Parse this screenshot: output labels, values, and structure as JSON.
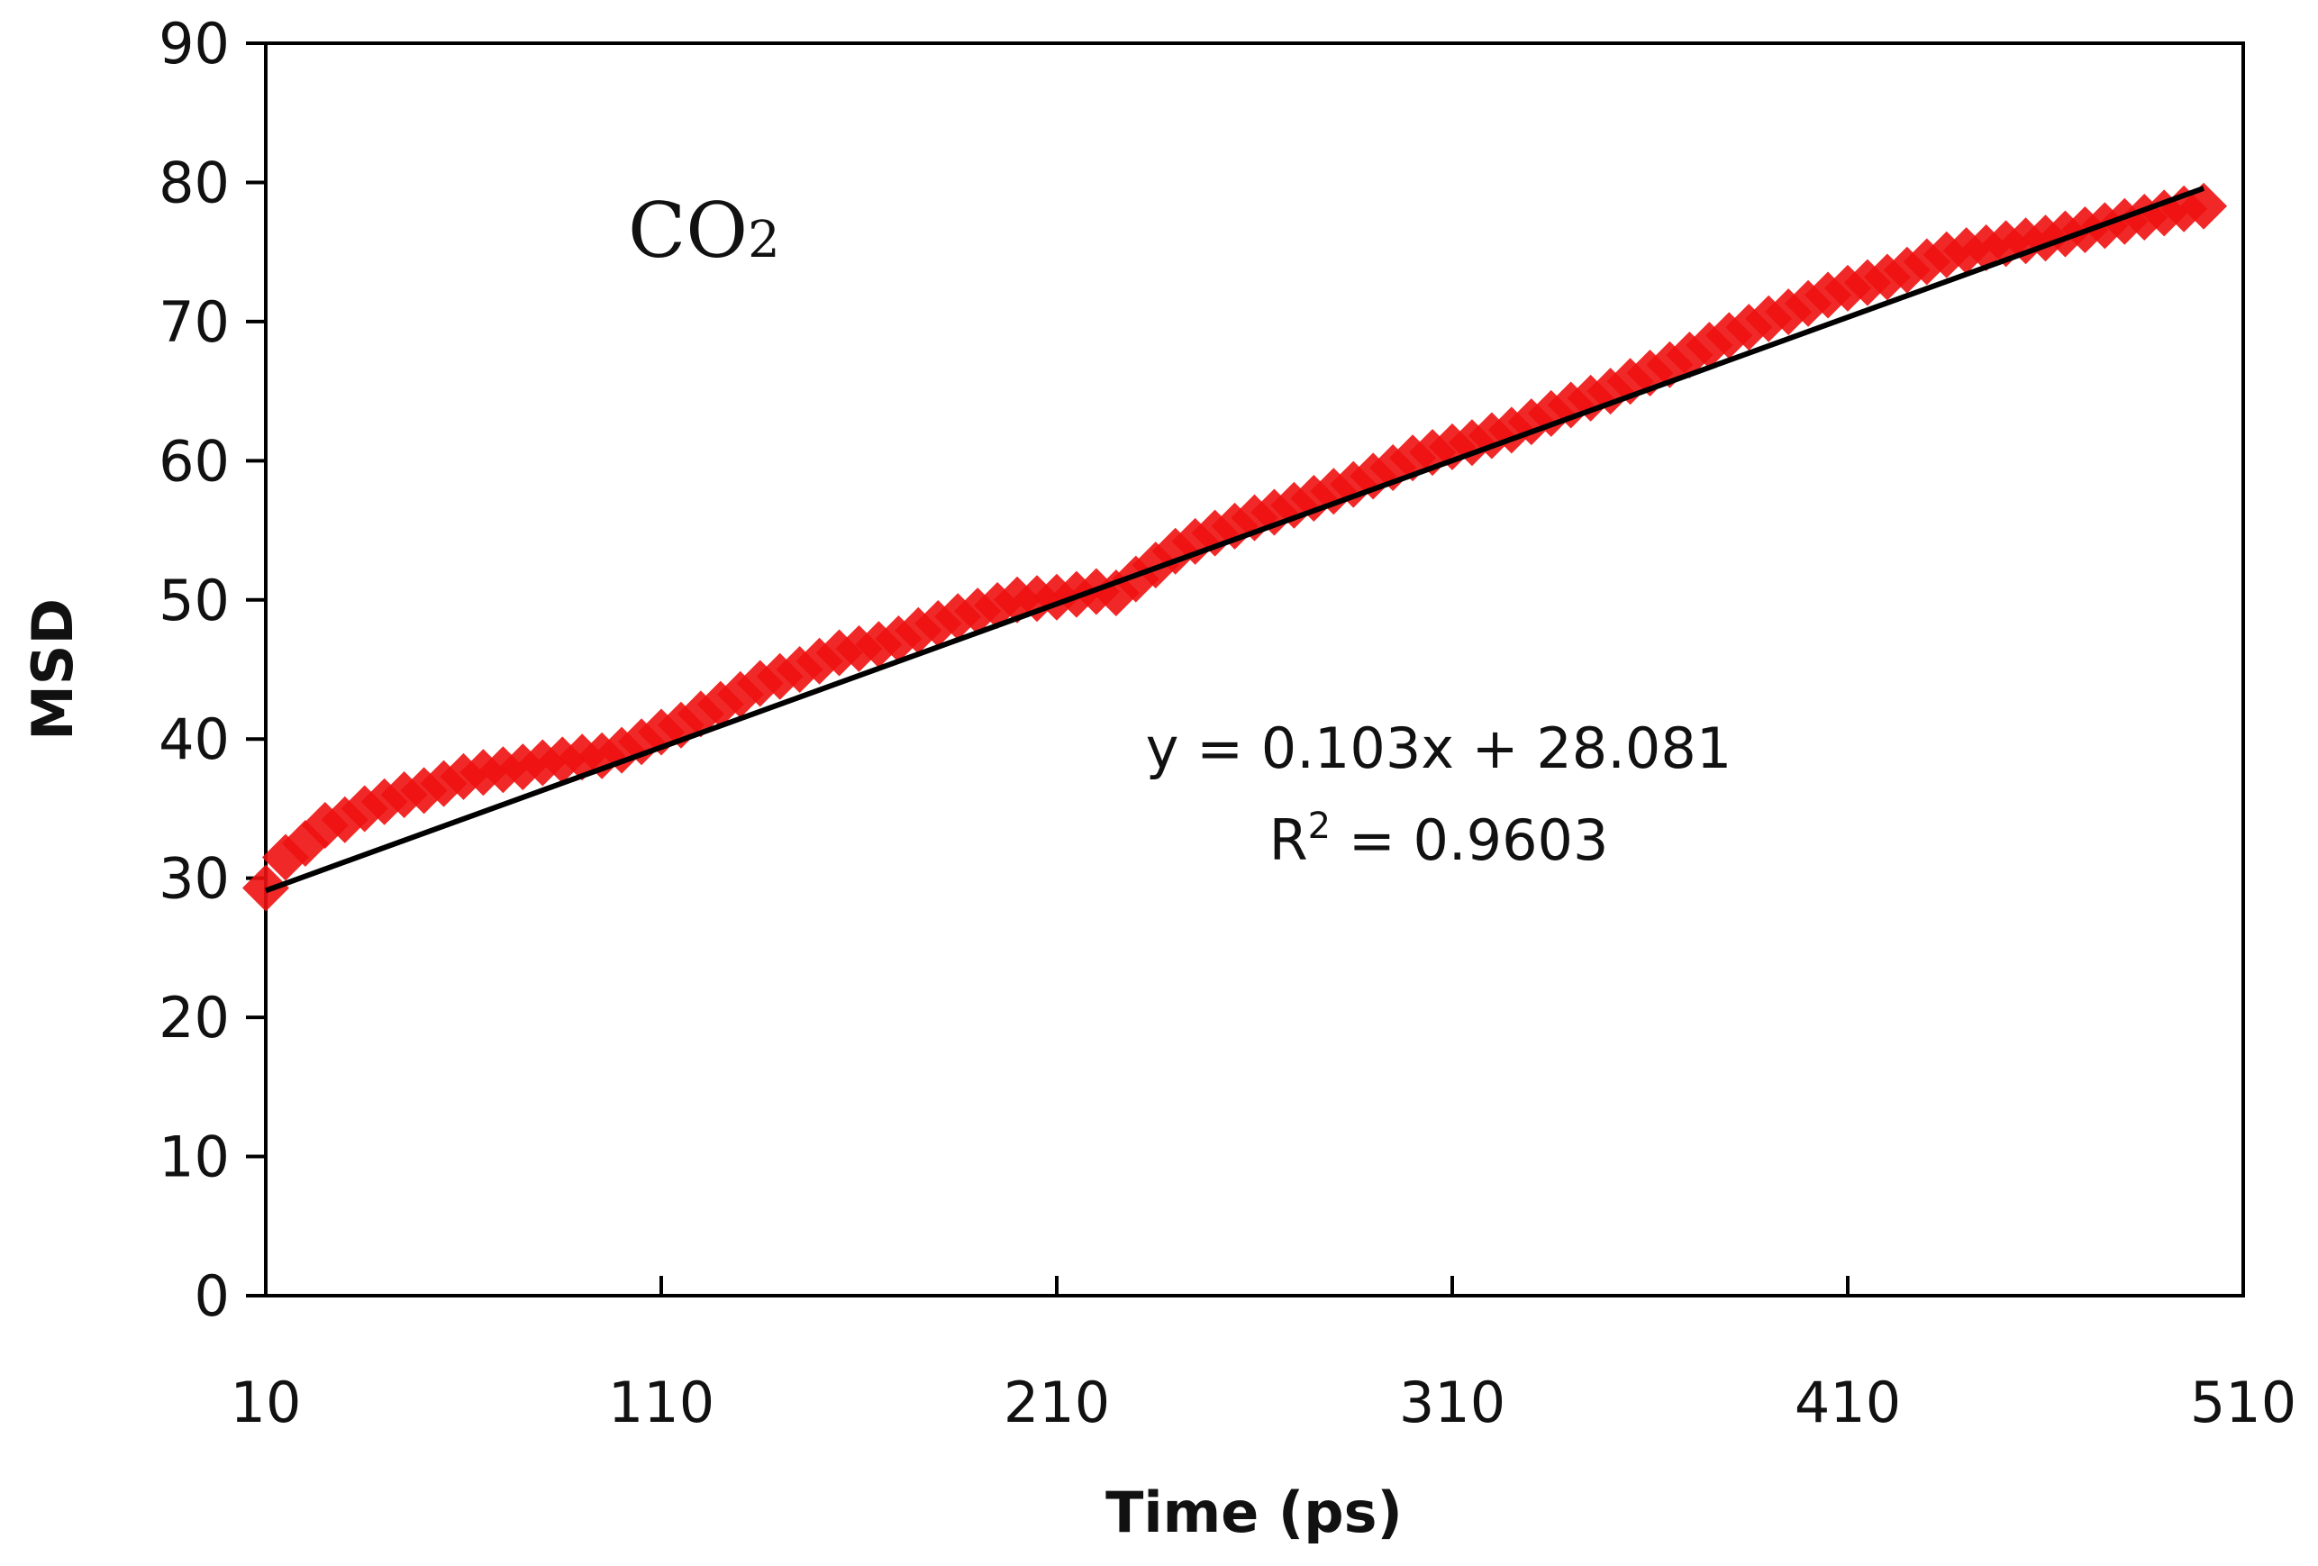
{
  "chart_data": {
    "type": "scatter",
    "title": "",
    "xlabel": "Time (ps)",
    "ylabel": "MSD",
    "xlim": [
      10,
      510
    ],
    "ylim": [
      0,
      90
    ],
    "x_ticks": [
      10,
      110,
      210,
      310,
      410,
      510
    ],
    "y_ticks": [
      0,
      10,
      20,
      30,
      40,
      50,
      60,
      70,
      80,
      90
    ],
    "series_label": {
      "base": "CO",
      "subscript": "2"
    },
    "marker_color": "#ee1111",
    "fit_line_color": "#000000",
    "grid": false,
    "series": [
      {
        "name": "CO2",
        "x": [
          10,
          15,
          20,
          25,
          30,
          35,
          40,
          45,
          50,
          55,
          60,
          65,
          70,
          75,
          80,
          85,
          90,
          95,
          100,
          105,
          110,
          115,
          120,
          125,
          130,
          135,
          140,
          145,
          150,
          155,
          160,
          165,
          170,
          175,
          180,
          185,
          190,
          195,
          200,
          205,
          210,
          215,
          220,
          225,
          230,
          235,
          240,
          245,
          250,
          255,
          260,
          265,
          270,
          275,
          280,
          285,
          290,
          295,
          300,
          305,
          310,
          315,
          320,
          325,
          330,
          335,
          340,
          345,
          350,
          355,
          360,
          365,
          370,
          375,
          380,
          385,
          390,
          395,
          400,
          405,
          410,
          415,
          420,
          425,
          430,
          435,
          440,
          445,
          450,
          455,
          460,
          465,
          470,
          475,
          480,
          485,
          490,
          495,
          500
        ],
        "y": [
          29.3,
          31.5,
          32.5,
          33.8,
          34.2,
          35.0,
          35.5,
          36.0,
          36.3,
          36.8,
          37.3,
          37.6,
          37.8,
          38.0,
          38.3,
          38.5,
          38.7,
          38.8,
          39.2,
          39.8,
          40.5,
          41.0,
          41.8,
          42.5,
          43.2,
          44.0,
          44.5,
          45.0,
          45.6,
          46.2,
          46.5,
          46.8,
          47.2,
          47.8,
          48.3,
          48.8,
          49.2,
          49.6,
          50.0,
          50.1,
          50.2,
          50.4,
          50.6,
          50.5,
          51.5,
          52.5,
          53.5,
          54.2,
          54.8,
          55.3,
          55.9,
          56.3,
          56.8,
          57.3,
          57.8,
          58.3,
          58.9,
          59.5,
          60.2,
          60.6,
          61.0,
          61.3,
          61.8,
          62.2,
          62.8,
          63.4,
          64.0,
          64.5,
          65.0,
          65.7,
          66.3,
          66.9,
          67.6,
          68.3,
          69.0,
          69.6,
          70.2,
          70.7,
          71.3,
          71.9,
          72.4,
          72.8,
          73.2,
          73.7,
          74.3,
          74.8,
          75.1,
          75.3,
          75.6,
          75.8,
          76.0,
          76.3,
          76.6,
          76.9,
          77.2,
          77.5,
          77.8,
          78.1,
          78.3
        ]
      }
    ],
    "trendline": {
      "slope": 0.103,
      "intercept": 28.081,
      "x_range": [
        10,
        500
      ],
      "equation": "y = 0.103x + 28.081",
      "r2_prefix": "R",
      "r2_power": "2",
      "r2_value": " = 0.9603"
    }
  }
}
